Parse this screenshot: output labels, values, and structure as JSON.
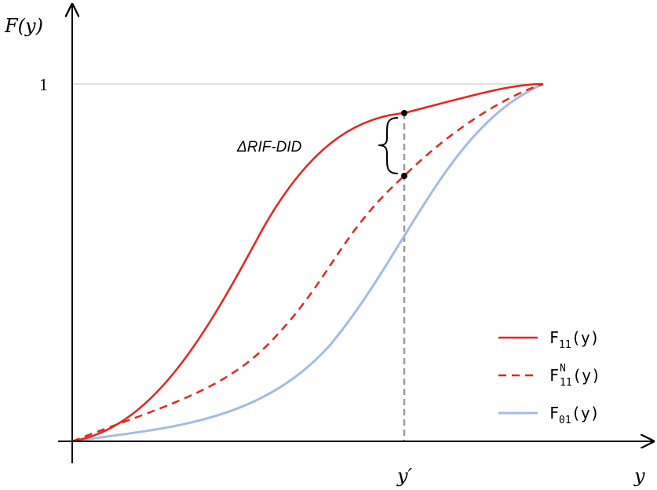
{
  "axes": {
    "y_label": "F(y)",
    "x_label": "y",
    "y_tick": "1",
    "x_marker": "y′"
  },
  "annotation": {
    "label": "ΔRIF-DID"
  },
  "legend": [
    {
      "base": "F",
      "sub": "11",
      "sup": "",
      "suffix": "(y)",
      "color": "#e8231d",
      "dash": "solid"
    },
    {
      "base": "F",
      "sub": "11",
      "sup": "N",
      "suffix": "(y)",
      "color": "#e8231d",
      "dash": "dashed"
    },
    {
      "base": "F",
      "sub": "01",
      "sup": "",
      "suffix": "(y)",
      "color": "#a3bce0",
      "dash": "solid"
    }
  ],
  "colors": {
    "f11": "#e8231d",
    "f11n": "#e8231d",
    "f01": "#a3bce0",
    "marker_line": "#9a9a9a",
    "reference_line": "#c0c0c0",
    "axis": "#000000"
  }
}
